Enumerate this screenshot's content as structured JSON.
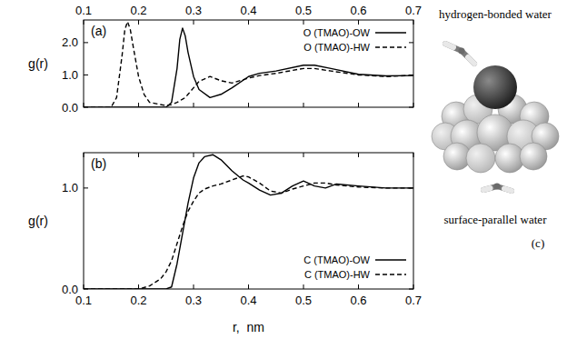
{
  "chart_data": [
    {
      "type": "line",
      "title": "(a)",
      "y_label": "g(r)",
      "x": [
        0.1,
        0.15,
        0.16,
        0.17,
        0.175,
        0.18,
        0.185,
        0.19,
        0.2,
        0.21,
        0.22,
        0.25,
        0.26,
        0.27,
        0.275,
        0.28,
        0.285,
        0.29,
        0.3,
        0.31,
        0.33,
        0.35,
        0.37,
        0.4,
        0.42,
        0.45,
        0.5,
        0.52,
        0.55,
        0.6,
        0.65,
        0.7
      ],
      "series": [
        {
          "name": "O (TMAO)-OW",
          "color": "#000000",
          "line_style": "solid",
          "values": [
            0,
            0,
            0,
            0,
            0,
            0,
            0,
            0,
            0,
            0,
            0,
            0,
            0.15,
            1.2,
            2.1,
            2.45,
            2.2,
            1.7,
            0.95,
            0.55,
            0.3,
            0.4,
            0.6,
            0.95,
            1.05,
            1.12,
            1.3,
            1.3,
            1.2,
            1.02,
            0.97,
            0.98
          ]
        },
        {
          "name": "O (TMAO)-HW",
          "color": "#000000",
          "line_style": "dashed",
          "values": [
            0,
            0,
            0.3,
            1.6,
            2.4,
            2.65,
            2.4,
            1.9,
            0.95,
            0.4,
            0.15,
            0.05,
            0.08,
            0.15,
            0.2,
            0.25,
            0.3,
            0.4,
            0.6,
            0.8,
            0.95,
            0.82,
            0.75,
            0.9,
            0.98,
            1.05,
            1.2,
            1.2,
            1.12,
            1.0,
            0.95,
            0.99
          ]
        }
      ],
      "xlim": [
        0.1,
        0.7
      ],
      "xticks": [
        0.1,
        0.2,
        0.3,
        0.4,
        0.5,
        0.6,
        0.7
      ],
      "ylim": [
        0,
        2.7
      ],
      "yticks": [
        {
          "value": 0,
          "label": "0.0"
        },
        {
          "value": 1,
          "label": "1.0"
        },
        {
          "value": 2,
          "label": "2.0"
        }
      ],
      "legend": "upper right"
    },
    {
      "type": "line",
      "title": "(b)",
      "y_label": "g(r)",
      "x_label": "r,  nm",
      "x": [
        0.1,
        0.2,
        0.22,
        0.24,
        0.25,
        0.26,
        0.27,
        0.28,
        0.29,
        0.3,
        0.31,
        0.32,
        0.335,
        0.35,
        0.37,
        0.39,
        0.4,
        0.42,
        0.44,
        0.46,
        0.48,
        0.5,
        0.52,
        0.54,
        0.56,
        0.6,
        0.65,
        0.7
      ],
      "series": [
        {
          "name": "C (TMAO)-OW",
          "color": "#000000",
          "line_style": "solid",
          "values": [
            0,
            0,
            0,
            0,
            0,
            0.02,
            0.25,
            0.55,
            0.85,
            1.1,
            1.25,
            1.31,
            1.33,
            1.28,
            1.17,
            1.08,
            1.05,
            0.98,
            0.93,
            0.95,
            1.02,
            1.07,
            1.02,
            1.0,
            1.04,
            1.02,
            1.0,
            1.0
          ]
        },
        {
          "name": "C (TMAO)-HW",
          "color": "#000000",
          "line_style": "dashed",
          "values": [
            0,
            0,
            0.03,
            0.1,
            0.17,
            0.28,
            0.45,
            0.62,
            0.77,
            0.87,
            0.95,
            0.99,
            1.02,
            1.04,
            1.08,
            1.12,
            1.11,
            1.05,
            0.97,
            0.95,
            0.99,
            1.02,
            1.05,
            1.05,
            1.03,
            1.01,
            1.0,
            1.0
          ]
        }
      ],
      "xlim": [
        0.1,
        0.7
      ],
      "xticks": [
        0.1,
        0.2,
        0.3,
        0.4,
        0.5,
        0.6,
        0.7
      ],
      "ylim": [
        0,
        1.35
      ],
      "yticks": [
        {
          "value": 0,
          "label": "0.0"
        },
        {
          "value": 1,
          "label": "1.0"
        }
      ],
      "legend": "lower right"
    }
  ],
  "diagram": {
    "top_label": "hydrogen-bonded water",
    "bottom_label": "surface-parallel water",
    "panel_label": "(c)"
  }
}
